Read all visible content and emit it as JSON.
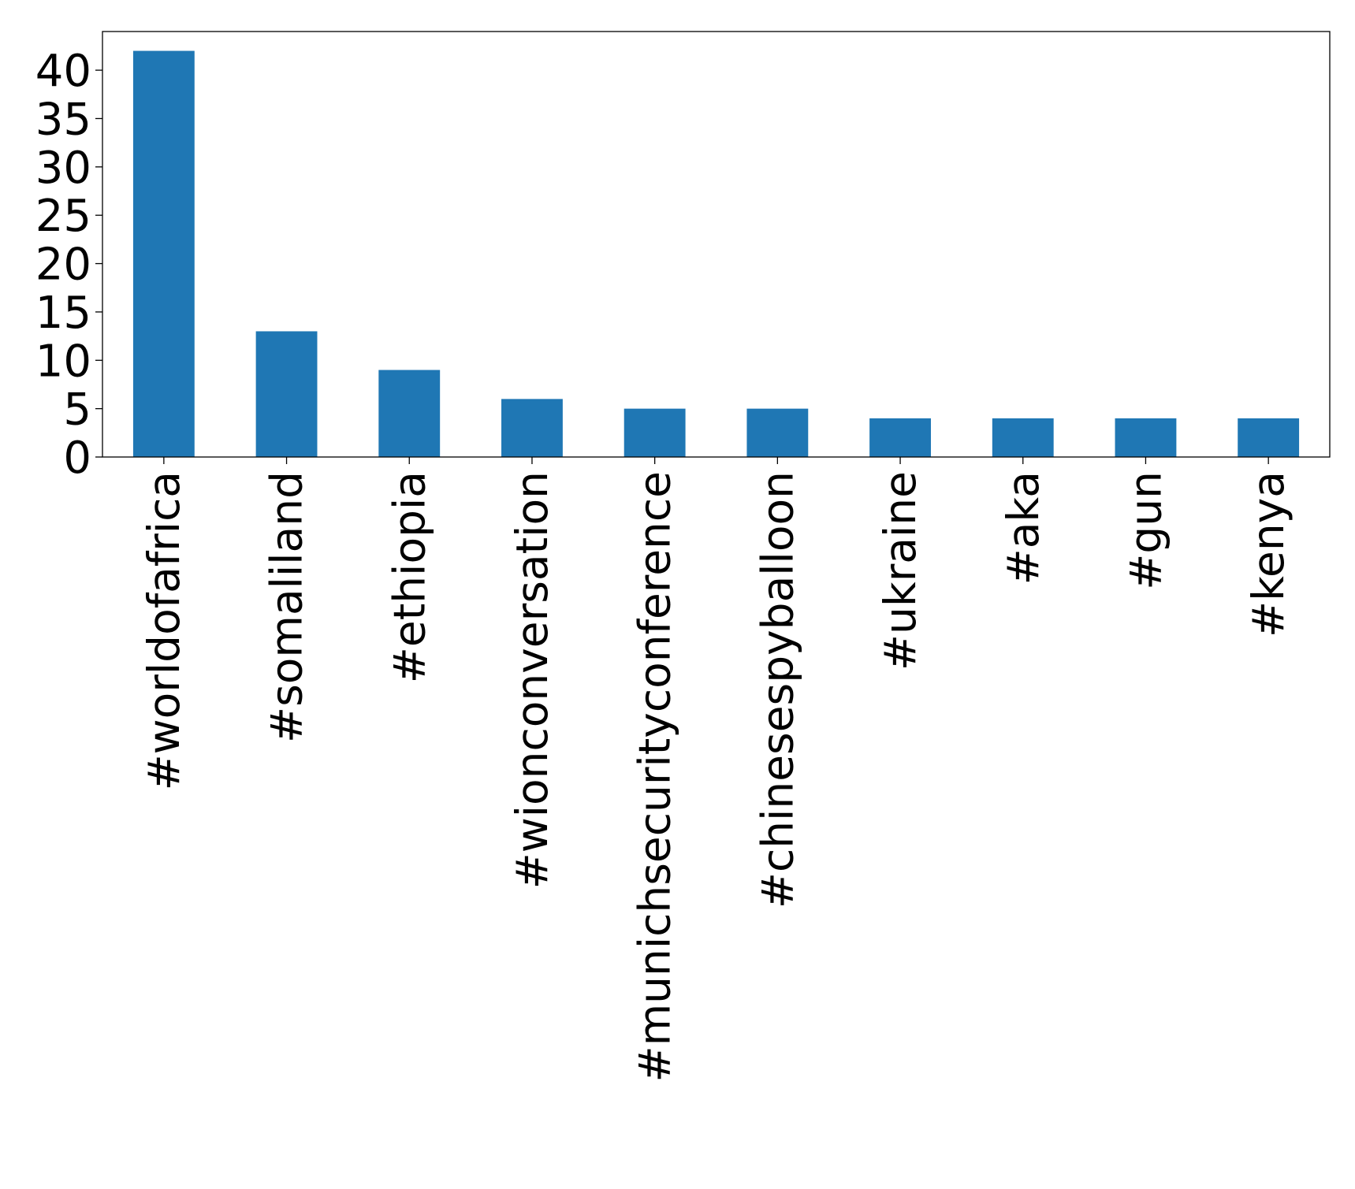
{
  "chart_data": {
    "type": "bar",
    "categories": [
      "#worldofafrica",
      "#somaliland",
      "#ethiopia",
      "#wionconversation",
      "#munichsecurityconference",
      "#chinesespyballoon",
      "#ukraine",
      "#aka",
      "#gun",
      "#kenya"
    ],
    "values": [
      42,
      13,
      9,
      6,
      5,
      5,
      4,
      4,
      4,
      4
    ],
    "ylim": [
      0,
      44
    ],
    "yticks": [
      0,
      5,
      10,
      15,
      20,
      25,
      30,
      35,
      40
    ],
    "grid": false,
    "colors": {
      "bar": "#1f77b4"
    }
  }
}
